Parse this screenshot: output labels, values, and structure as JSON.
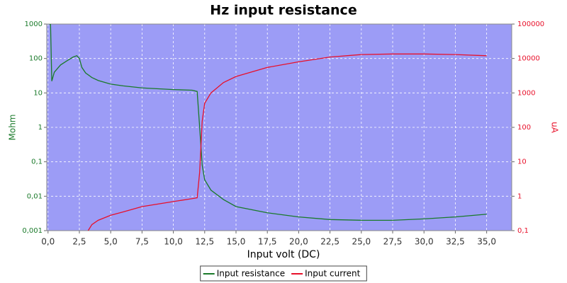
{
  "chart_data": {
    "type": "line",
    "title": "Hz input resistance",
    "x_label": "Input volt (DC)",
    "y_label": "Mohm",
    "y2_label": "uA",
    "xlim": [
      -0.1,
      37.0
    ],
    "xticks": [
      {
        "value": 0,
        "label": "0,0"
      },
      {
        "value": 2.5,
        "label": "2,5"
      },
      {
        "value": 5,
        "label": "5,0"
      },
      {
        "value": 7.5,
        "label": "7,5"
      },
      {
        "value": 10,
        "label": "10,0"
      },
      {
        "value": 12.5,
        "label": "12,5"
      },
      {
        "value": 15,
        "label": "15,0"
      },
      {
        "value": 17.5,
        "label": "17,5"
      },
      {
        "value": 20,
        "label": "20,0"
      },
      {
        "value": 22.5,
        "label": "22,5"
      },
      {
        "value": 25,
        "label": "25,0"
      },
      {
        "value": 27.5,
        "label": "27,5"
      },
      {
        "value": 30,
        "label": "30,0"
      },
      {
        "value": 32.5,
        "label": "32,5"
      },
      {
        "value": 35,
        "label": "35,0"
      }
    ],
    "ylim": [
      0.001,
      1000
    ],
    "yticks": [
      {
        "value": 0.001,
        "label": "0,001"
      },
      {
        "value": 0.01,
        "label": "0,01"
      },
      {
        "value": 0.1,
        "label": "0,1"
      },
      1,
      10,
      100,
      1000
    ],
    "y2lim": [
      0.1,
      100000
    ],
    "y2ticks": [
      {
        "value": 0.1,
        "label": "0,1"
      },
      1,
      10,
      100,
      1000,
      10000,
      100000
    ],
    "log_scale": true,
    "grid": true,
    "legend": "bottom",
    "plot_background": "#9c9cf6",
    "series": [
      {
        "name": "Input resistance",
        "color": "#1a7a2a",
        "x": [
          0.1,
          0.2,
          0.3,
          0.5,
          1.0,
          1.5,
          2.0,
          2.3,
          2.5,
          2.7,
          3.0,
          3.5,
          4.0,
          5.0,
          6.0,
          7.5,
          10.0,
          11.5,
          11.9,
          12.1,
          12.3,
          12.5,
          13.0,
          14.0,
          15.0,
          17.5,
          20.0,
          22.5,
          25.0,
          27.5,
          30.0,
          32.5,
          35.0
        ],
        "values": [
          1000,
          1000,
          22,
          40,
          65,
          85,
          110,
          120,
          100,
          55,
          38,
          28,
          23,
          18,
          16,
          14,
          12.5,
          12,
          11,
          1,
          0.08,
          0.03,
          0.015,
          0.008,
          0.005,
          0.0033,
          0.0025,
          0.0021,
          0.002,
          0.002,
          0.0022,
          0.0025,
          0.003
        ]
      },
      {
        "name": "Input current",
        "color": "#e8102a",
        "axis": "y2",
        "x": [
          3.2,
          3.5,
          4.0,
          5.0,
          6.0,
          7.5,
          10.0,
          11.5,
          11.9,
          12.1,
          12.3,
          12.5,
          13.0,
          14.0,
          15.0,
          17.5,
          20.0,
          22.5,
          25.0,
          27.5,
          30.0,
          32.5,
          35.0
        ],
        "values": [
          0.1,
          0.15,
          0.2,
          0.28,
          0.35,
          0.5,
          0.7,
          0.85,
          0.9,
          5,
          150,
          500,
          1000,
          2000,
          3000,
          5500,
          8000,
          11000,
          13000,
          13500,
          13500,
          13000,
          12000
        ]
      }
    ]
  }
}
